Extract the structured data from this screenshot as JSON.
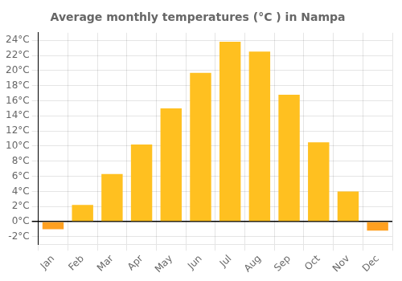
{
  "chart_data": {
    "type": "bar",
    "title": "Average monthly temperatures (°C ) in Nampa",
    "categories": [
      "Jan",
      "Feb",
      "Mar",
      "Apr",
      "May",
      "Jun",
      "Jul",
      "Aug",
      "Sep",
      "Oct",
      "Nov",
      "Dec"
    ],
    "values": [
      -1.0,
      2.2,
      6.3,
      10.2,
      15.0,
      19.7,
      23.8,
      22.5,
      16.8,
      10.5,
      4.0,
      -1.2
    ],
    "colors": [
      "#FFA020",
      "#FFC020",
      "#FFC020",
      "#FFC020",
      "#FFC020",
      "#FFC020",
      "#FFC020",
      "#FFC020",
      "#FFC020",
      "#FFC020",
      "#FFC020",
      "#FFA020"
    ],
    "ylim": [
      -3,
      25
    ],
    "yticks": [
      {
        "value": -2,
        "label": "-2°C"
      },
      {
        "value": 0,
        "label": "0°C"
      },
      {
        "value": 2,
        "label": "2°C"
      },
      {
        "value": 4,
        "label": "4°C"
      },
      {
        "value": 6,
        "label": "6°C"
      },
      {
        "value": 8,
        "label": "8°C"
      },
      {
        "value": 10,
        "label": "10°C"
      },
      {
        "value": 12,
        "label": "12°C"
      },
      {
        "value": 14,
        "label": "14°C"
      },
      {
        "value": 16,
        "label": "16°C"
      },
      {
        "value": 18,
        "label": "18°C"
      },
      {
        "value": 20,
        "label": "20°C"
      },
      {
        "value": 22,
        "label": "22°C"
      },
      {
        "value": 24,
        "label": "24°C"
      }
    ],
    "grid": true
  }
}
